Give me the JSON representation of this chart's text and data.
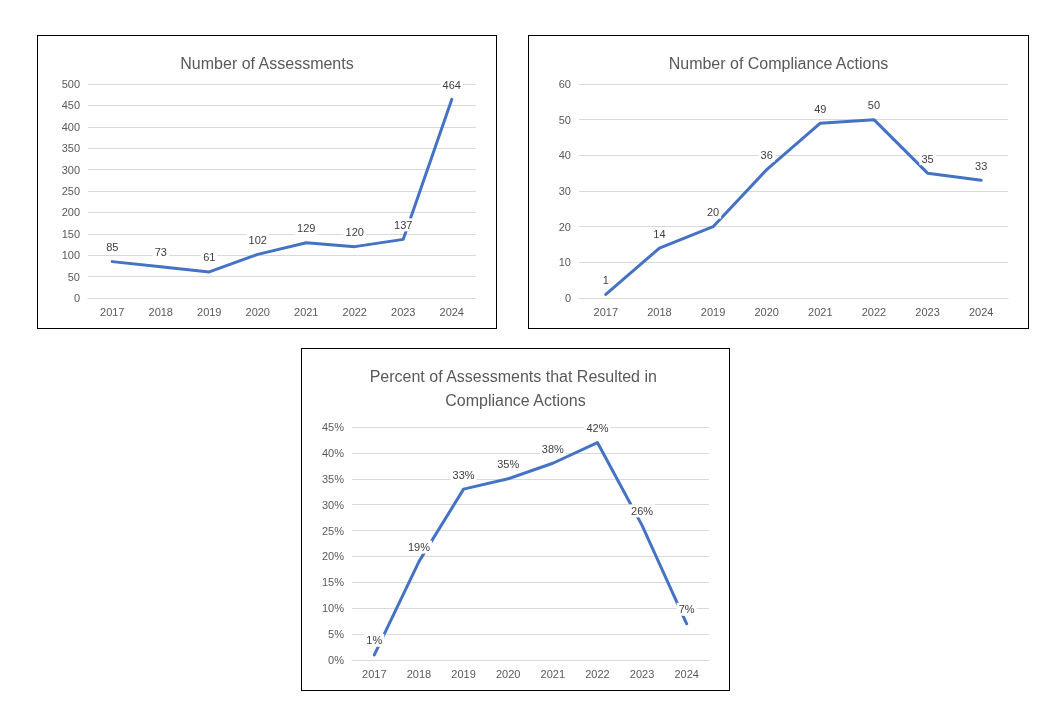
{
  "chart_data": [
    {
      "type": "line",
      "title": "Number of Assessments",
      "categories": [
        "2017",
        "2018",
        "2019",
        "2020",
        "2021",
        "2022",
        "2023",
        "2024"
      ],
      "series": [
        {
          "color": "#4472c4",
          "values": [
            85,
            73,
            61,
            102,
            129,
            120,
            137,
            464
          ]
        }
      ],
      "ylim": [
        0,
        500
      ],
      "yticks": [
        0,
        50,
        100,
        150,
        200,
        250,
        300,
        350,
        400,
        450,
        500
      ],
      "grid": "y",
      "data_labels": true,
      "marker": "none",
      "line_style": "solid"
    },
    {
      "type": "line",
      "title": "Number of Compliance Actions",
      "categories": [
        "2017",
        "2018",
        "2019",
        "2020",
        "2021",
        "2022",
        "2023",
        "2024"
      ],
      "series": [
        {
          "color": "#4472c4",
          "values": [
            1,
            14,
            20,
            36,
            49,
            50,
            35,
            33
          ]
        }
      ],
      "ylim": [
        0,
        60
      ],
      "yticks": [
        0,
        10,
        20,
        30,
        40,
        50,
        60
      ],
      "grid": "y",
      "data_labels": true,
      "marker": "none",
      "line_style": "solid"
    },
    {
      "type": "line",
      "title": "Percent of Assessments that Resulted in Compliance Actions",
      "categories": [
        "2017",
        "2018",
        "2019",
        "2020",
        "2021",
        "2022",
        "2023",
        "2024"
      ],
      "series": [
        {
          "color": "#4472c4",
          "values": [
            1,
            19,
            33,
            35,
            38,
            42,
            26,
            7
          ],
          "value_labels": [
            "1%",
            "19%",
            "33%",
            "35%",
            "38%",
            "42%",
            "26%",
            "7%"
          ]
        }
      ],
      "ylim": [
        0,
        45
      ],
      "yticks": [
        {
          "value": 0,
          "label": "0%"
        },
        {
          "value": 5,
          "label": "5%"
        },
        {
          "value": 10,
          "label": "10%"
        },
        {
          "value": 15,
          "label": "15%"
        },
        {
          "value": 20,
          "label": "20%"
        },
        {
          "value": 25,
          "label": "25%"
        },
        {
          "value": 30,
          "label": "30%"
        },
        {
          "value": 35,
          "label": "35%"
        },
        {
          "value": 40,
          "label": "40%"
        },
        {
          "value": 45,
          "label": "45%"
        }
      ],
      "grid": "y",
      "marker": "none",
      "line_style": "solid"
    }
  ]
}
